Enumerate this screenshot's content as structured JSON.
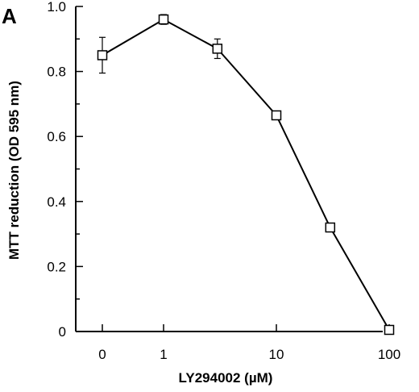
{
  "panel_label": "A",
  "chart_data": {
    "type": "line",
    "xlabel": "LY294002 (µM)",
    "ylabel": "MTT reduction (OD 595 nm)",
    "x_scale": "log",
    "x_ticks": [
      "0",
      "1",
      "10",
      "100"
    ],
    "y_ticks": [
      "0",
      "0.2",
      "0.4",
      "0.6",
      "0.8",
      "1.0"
    ],
    "ylim": [
      0,
      1.0
    ],
    "grid": false,
    "legend": "none",
    "marker": "open-square",
    "points": [
      {
        "x": 0,
        "y": 0.85,
        "err": 0.055
      },
      {
        "x": 1,
        "y": 0.96,
        "err": 0.015
      },
      {
        "x": 3,
        "y": 0.87,
        "err": 0.03
      },
      {
        "x": 10,
        "y": 0.665,
        "err": 0.01
      },
      {
        "x": 30,
        "y": 0.32,
        "err": 0.0
      },
      {
        "x": 100,
        "y": 0.005,
        "err": 0.0
      }
    ]
  }
}
